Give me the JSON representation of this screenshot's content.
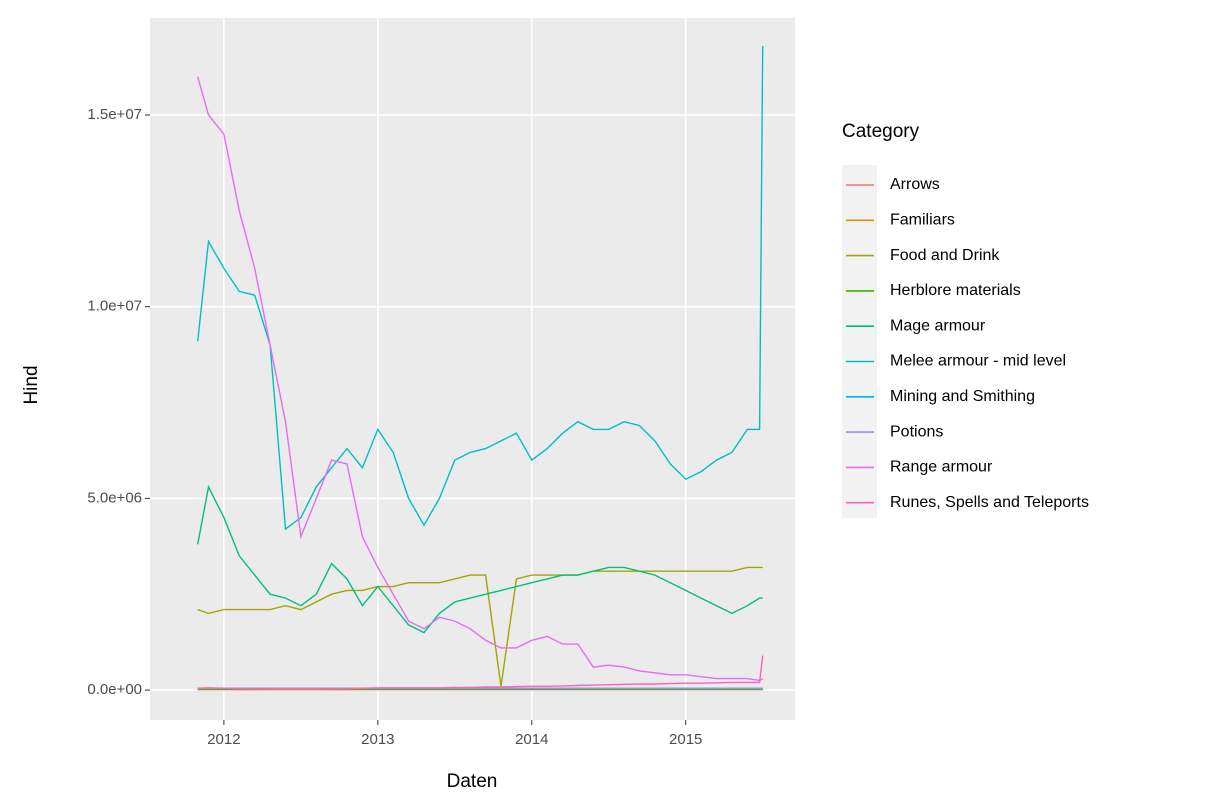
{
  "chart_data": {
    "type": "line",
    "x_label": "Daten",
    "y_label": "Hind",
    "legend_title": "Category",
    "legend": "right",
    "grid": true,
    "xlim": [
      2011.52,
      2015.71
    ],
    "xticks": [
      2012,
      2013,
      2014,
      2015
    ],
    "ylim": [
      -780000,
      17530000
    ],
    "yticks": [
      {
        "value": 0,
        "label": "0.0e+00"
      },
      {
        "value": 5000000,
        "label": "5.0e+06"
      },
      {
        "value": 10000000,
        "label": "1.0e+07"
      },
      {
        "value": 15000000,
        "label": "1.5e+07"
      }
    ],
    "x": [
      2011.83,
      2011.9,
      2012.0,
      2012.1,
      2012.2,
      2012.3,
      2012.4,
      2012.5,
      2012.6,
      2012.7,
      2012.8,
      2012.9,
      2013.0,
      2013.1,
      2013.2,
      2013.3,
      2013.4,
      2013.5,
      2013.6,
      2013.7,
      2013.8,
      2013.9,
      2014.0,
      2014.1,
      2014.2,
      2014.3,
      2014.4,
      2014.5,
      2014.6,
      2014.7,
      2014.8,
      2014.9,
      2015.0,
      2015.1,
      2015.2,
      2015.3,
      2015.4,
      2015.48,
      2015.5
    ],
    "series": [
      {
        "name": "Arrows",
        "color": "#F8766D",
        "values": [
          20000.0,
          20000.0,
          20000.0,
          20000.0,
          20000.0,
          20000.0,
          20000.0,
          20000.0,
          20000.0,
          20000.0,
          20000.0,
          20000.0,
          20000.0,
          20000.0,
          20000.0,
          20000.0,
          20000.0,
          20000.0,
          20000.0,
          20000.0,
          20000.0,
          20000.0,
          20000.0,
          20000.0,
          20000.0,
          20000.0,
          20000.0,
          20000.0,
          20000.0,
          20000.0,
          20000.0,
          20000.0,
          20000.0,
          20000.0,
          20000.0,
          20000.0,
          20000.0,
          20000.0,
          20000.0
        ]
      },
      {
        "name": "Familiars",
        "color": "#D89000",
        "values": [
          10000.0,
          10000.0,
          10000.0,
          10000.0,
          10000.0,
          10000.0,
          10000.0,
          10000.0,
          10000.0,
          10000.0,
          10000.0,
          10000.0,
          10000.0,
          10000.0,
          10000.0,
          10000.0,
          10000.0,
          10000.0,
          10000.0,
          10000.0,
          10000.0,
          10000.0,
          10000.0,
          10000.0,
          10000.0,
          10000.0,
          10000.0,
          10000.0,
          10000.0,
          10000.0,
          10000.0,
          10000.0,
          10000.0,
          10000.0,
          10000.0,
          10000.0,
          10000.0,
          10000.0,
          10000.0
        ]
      },
      {
        "name": "Food and Drink",
        "color": "#A3A500",
        "values": [
          2100000.0,
          2000000.0,
          2100000.0,
          2100000.0,
          2100000.0,
          2100000.0,
          2200000.0,
          2100000.0,
          2300000.0,
          2500000.0,
          2600000.0,
          2600000.0,
          2700000.0,
          2700000.0,
          2800000.0,
          2800000.0,
          2800000.0,
          2900000.0,
          3000000.0,
          3000000.0,
          100000.0,
          2900000.0,
          3000000.0,
          3000000.0,
          3000000.0,
          3000000.0,
          3100000.0,
          3100000.0,
          3100000.0,
          3100000.0,
          3100000.0,
          3100000.0,
          3100000.0,
          3100000.0,
          3100000.0,
          3100000.0,
          3200000.0,
          3200000.0,
          3200000.0
        ]
      },
      {
        "name": "Herblore materials",
        "color": "#39B600",
        "values": [
          30000.0,
          30000.0,
          30000.0,
          30000.0,
          30000.0,
          30000.0,
          30000.0,
          30000.0,
          30000.0,
          30000.0,
          30000.0,
          30000.0,
          30000.0,
          30000.0,
          30000.0,
          30000.0,
          30000.0,
          30000.0,
          30000.0,
          30000.0,
          30000.0,
          30000.0,
          30000.0,
          30000.0,
          30000.0,
          30000.0,
          30000.0,
          30000.0,
          30000.0,
          30000.0,
          30000.0,
          30000.0,
          30000.0,
          30000.0,
          30000.0,
          30000.0,
          30000.0,
          30000.0,
          30000.0
        ]
      },
      {
        "name": "Mage armour",
        "color": "#00BF7D",
        "values": [
          3800000.0,
          5300000.0,
          4500000.0,
          3500000.0,
          3000000.0,
          2500000.0,
          2400000.0,
          2200000.0,
          2500000.0,
          3300000.0,
          2900000.0,
          2200000.0,
          2700000.0,
          2200000.0,
          1700000.0,
          1500000.0,
          2000000.0,
          2300000.0,
          2400000.0,
          2500000.0,
          2600000.0,
          2700000.0,
          2800000.0,
          2900000.0,
          3000000.0,
          3000000.0,
          3100000.0,
          3200000.0,
          3200000.0,
          3100000.0,
          3000000.0,
          2800000.0,
          2600000.0,
          2400000.0,
          2200000.0,
          2000000.0,
          2200000.0,
          2400000.0,
          2400000.0
        ]
      },
      {
        "name": "Melee armour - mid level",
        "color": "#00BFC4",
        "values": [
          9100000.0,
          11700000.0,
          11000000.0,
          10400000.0,
          10300000.0,
          9000000.0,
          4200000.0,
          4500000.0,
          5300000.0,
          5800000.0,
          6300000.0,
          5800000.0,
          6800000.0,
          6200000.0,
          5000000.0,
          4300000.0,
          5000000.0,
          6000000.0,
          6200000.0,
          6300000.0,
          6500000.0,
          6700000.0,
          6000000.0,
          6300000.0,
          6700000.0,
          7000000.0,
          6800000.0,
          6800000.0,
          7000000.0,
          6900000.0,
          6500000.0,
          5900000.0,
          5500000.0,
          5700000.0,
          6000000.0,
          6200000.0,
          6800000.0,
          6800000.0,
          16800000.0
        ]
      },
      {
        "name": "Mining and Smithing",
        "color": "#00B0F6",
        "values": [
          40000.0,
          40000.0,
          40000.0,
          40000.0,
          40000.0,
          40000.0,
          40000.0,
          40000.0,
          40000.0,
          40000.0,
          40000.0,
          40000.0,
          40000.0,
          40000.0,
          40000.0,
          40000.0,
          40000.0,
          40000.0,
          40000.0,
          40000.0,
          40000.0,
          40000.0,
          40000.0,
          40000.0,
          40000.0,
          40000.0,
          40000.0,
          40000.0,
          40000.0,
          40000.0,
          40000.0,
          40000.0,
          40000.0,
          40000.0,
          40000.0,
          40000.0,
          40000.0,
          40000.0,
          40000.0
        ]
      },
      {
        "name": "Potions",
        "color": "#9590FF",
        "values": [
          50000.0,
          50000.0,
          50000.0,
          50000.0,
          50000.0,
          50000.0,
          50000.0,
          50000.0,
          50000.0,
          50000.0,
          50000.0,
          50000.0,
          50000.0,
          50000.0,
          50000.0,
          50000.0,
          50000.0,
          50000.0,
          50000.0,
          50000.0,
          50000.0,
          50000.0,
          50000.0,
          50000.0,
          50000.0,
          50000.0,
          50000.0,
          50000.0,
          50000.0,
          50000.0,
          50000.0,
          50000.0,
          50000.0,
          50000.0,
          50000.0,
          50000.0,
          50000.0,
          50000.0,
          50000.0
        ]
      },
      {
        "name": "Range armour",
        "color": "#E76BF3",
        "values": [
          16000000.0,
          15000000.0,
          14500000.0,
          12500000.0,
          11000000.0,
          9000000.0,
          7000000.0,
          4000000.0,
          5000000.0,
          6000000.0,
          5900000.0,
          4000000.0,
          3200000.0,
          2500000.0,
          1800000.0,
          1600000.0,
          1900000.0,
          1800000.0,
          1600000.0,
          1300000.0,
          1100000.0,
          1100000.0,
          1300000.0,
          1400000.0,
          1200000.0,
          1200000.0,
          600000.0,
          650000.0,
          600000.0,
          500000.0,
          450000.0,
          400000.0,
          400000.0,
          350000.0,
          300000.0,
          300000.0,
          300000.0,
          250000.0,
          300000.0
        ]
      },
      {
        "name": "Runes, Spells and Teleports",
        "color": "#FF62BC",
        "values": [
          50000.0,
          60000.0,
          50000.0,
          40000.0,
          40000.0,
          30000.0,
          30000.0,
          30000.0,
          30000.0,
          40000.0,
          40000.0,
          50000.0,
          60000.0,
          60000.0,
          60000.0,
          60000.0,
          60000.0,
          70000.0,
          70000.0,
          80000.0,
          80000.0,
          90000.0,
          100000.0,
          100000.0,
          110000.0,
          120000.0,
          130000.0,
          140000.0,
          150000.0,
          160000.0,
          160000.0,
          170000.0,
          180000.0,
          180000.0,
          190000.0,
          200000.0,
          200000.0,
          200000.0,
          900000.0
        ]
      }
    ]
  }
}
